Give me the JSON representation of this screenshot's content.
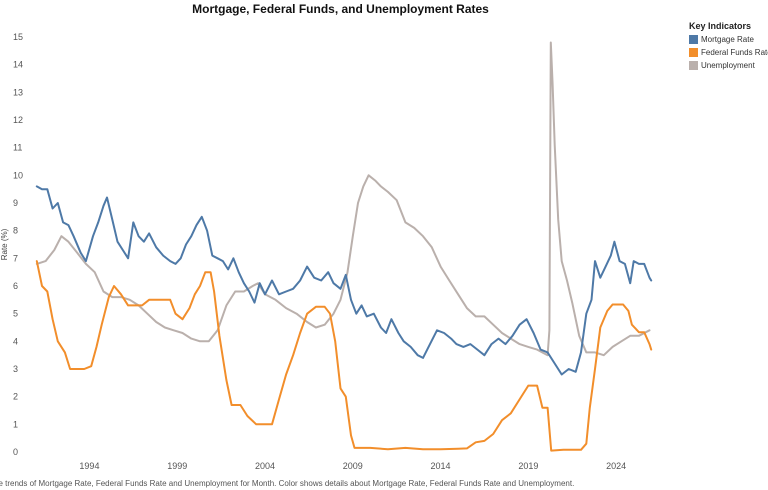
{
  "chart_data": {
    "type": "line",
    "title": "Mortgage, Federal Funds, and Unemployment Rates",
    "xlabel": "",
    "ylabel": "Rate (%)",
    "ylim": [
      0,
      15
    ],
    "xlim": [
      1990.5,
      2026.5
    ],
    "y_ticks": [
      "0",
      "1",
      "2",
      "3",
      "4",
      "5",
      "6",
      "7",
      "8",
      "9",
      "10",
      "11",
      "12",
      "13",
      "14",
      "15"
    ],
    "x_ticks": [
      {
        "value": 1994,
        "label": "1994"
      },
      {
        "value": 1999,
        "label": "1999"
      },
      {
        "value": 2004,
        "label": "2004"
      },
      {
        "value": 2009,
        "label": "2009"
      },
      {
        "value": 2014,
        "label": "2014"
      },
      {
        "value": 2019,
        "label": "2019"
      },
      {
        "value": 2024,
        "label": "2024"
      }
    ],
    "grid": false,
    "legend": {
      "title": "Key Indicators",
      "position": "right",
      "items": [
        {
          "label": "Mortgage Rate",
          "color": "#4e79a7"
        },
        {
          "label": "Federal Funds Rate",
          "color": "#f28e2b"
        },
        {
          "label": "Unemployment",
          "color": "#bab0ac"
        }
      ]
    },
    "series": [
      {
        "name": "Unemployment",
        "color": "#bab0ac",
        "points": [
          [
            1991.0,
            6.8
          ],
          [
            1991.5,
            6.9
          ],
          [
            1992.0,
            7.3
          ],
          [
            1992.4,
            7.8
          ],
          [
            1992.8,
            7.6
          ],
          [
            1993.3,
            7.2
          ],
          [
            1993.8,
            6.8
          ],
          [
            1994.3,
            6.5
          ],
          [
            1994.8,
            5.8
          ],
          [
            1995.3,
            5.6
          ],
          [
            1995.8,
            5.6
          ],
          [
            1996.3,
            5.5
          ],
          [
            1996.8,
            5.3
          ],
          [
            1997.3,
            5.0
          ],
          [
            1997.8,
            4.7
          ],
          [
            1998.3,
            4.5
          ],
          [
            1998.8,
            4.4
          ],
          [
            1999.3,
            4.3
          ],
          [
            1999.8,
            4.1
          ],
          [
            2000.3,
            4.0
          ],
          [
            2000.8,
            4.0
          ],
          [
            2001.3,
            4.4
          ],
          [
            2001.8,
            5.3
          ],
          [
            2002.3,
            5.8
          ],
          [
            2002.8,
            5.8
          ],
          [
            2003.3,
            6.0
          ],
          [
            2003.6,
            6.1
          ],
          [
            2004.0,
            5.7
          ],
          [
            2004.6,
            5.5
          ],
          [
            2005.2,
            5.2
          ],
          [
            2005.8,
            5.0
          ],
          [
            2006.4,
            4.7
          ],
          [
            2006.9,
            4.5
          ],
          [
            2007.4,
            4.6
          ],
          [
            2007.9,
            5.0
          ],
          [
            2008.3,
            5.5
          ],
          [
            2008.7,
            6.5
          ],
          [
            2009.0,
            7.8
          ],
          [
            2009.3,
            9.0
          ],
          [
            2009.6,
            9.6
          ],
          [
            2009.9,
            10.0
          ],
          [
            2010.3,
            9.8
          ],
          [
            2010.6,
            9.6
          ],
          [
            2011.0,
            9.4
          ],
          [
            2011.5,
            9.1
          ],
          [
            2012.0,
            8.3
          ],
          [
            2012.5,
            8.1
          ],
          [
            2013.0,
            7.8
          ],
          [
            2013.5,
            7.4
          ],
          [
            2014.0,
            6.7
          ],
          [
            2014.5,
            6.2
          ],
          [
            2015.0,
            5.7
          ],
          [
            2015.5,
            5.2
          ],
          [
            2016.0,
            4.9
          ],
          [
            2016.5,
            4.9
          ],
          [
            2017.0,
            4.6
          ],
          [
            2017.5,
            4.3
          ],
          [
            2018.0,
            4.1
          ],
          [
            2018.5,
            3.9
          ],
          [
            2019.0,
            3.8
          ],
          [
            2019.5,
            3.7
          ],
          [
            2020.1,
            3.5
          ],
          [
            2020.2,
            4.4
          ],
          [
            2020.28,
            14.8
          ],
          [
            2020.38,
            13.3
          ],
          [
            2020.5,
            11.1
          ],
          [
            2020.7,
            8.4
          ],
          [
            2020.9,
            6.9
          ],
          [
            2021.2,
            6.2
          ],
          [
            2021.5,
            5.4
          ],
          [
            2021.9,
            4.2
          ],
          [
            2022.3,
            3.6
          ],
          [
            2022.8,
            3.6
          ],
          [
            2023.3,
            3.5
          ],
          [
            2023.8,
            3.8
          ],
          [
            2024.3,
            4.0
          ],
          [
            2024.8,
            4.2
          ],
          [
            2025.3,
            4.2
          ],
          [
            2025.9,
            4.4
          ]
        ]
      },
      {
        "name": "Federal Funds Rate",
        "color": "#f28e2b",
        "points": [
          [
            1991.0,
            6.9
          ],
          [
            1991.3,
            6.0
          ],
          [
            1991.6,
            5.8
          ],
          [
            1991.9,
            4.8
          ],
          [
            1992.2,
            4.0
          ],
          [
            1992.6,
            3.6
          ],
          [
            1992.9,
            3.0
          ],
          [
            1993.3,
            3.0
          ],
          [
            1993.7,
            3.0
          ],
          [
            1994.1,
            3.1
          ],
          [
            1994.4,
            3.8
          ],
          [
            1994.7,
            4.6
          ],
          [
            1995.1,
            5.6
          ],
          [
            1995.4,
            6.0
          ],
          [
            1995.8,
            5.7
          ],
          [
            1996.2,
            5.3
          ],
          [
            1996.6,
            5.3
          ],
          [
            1997.0,
            5.3
          ],
          [
            1997.4,
            5.5
          ],
          [
            1997.8,
            5.5
          ],
          [
            1998.2,
            5.5
          ],
          [
            1998.6,
            5.5
          ],
          [
            1998.9,
            5.0
          ],
          [
            1999.3,
            4.8
          ],
          [
            1999.7,
            5.2
          ],
          [
            2000.0,
            5.7
          ],
          [
            2000.3,
            6.0
          ],
          [
            2000.6,
            6.5
          ],
          [
            2000.9,
            6.5
          ],
          [
            2001.1,
            5.8
          ],
          [
            2001.4,
            4.2
          ],
          [
            2001.8,
            2.6
          ],
          [
            2002.1,
            1.7
          ],
          [
            2002.6,
            1.7
          ],
          [
            2003.0,
            1.3
          ],
          [
            2003.5,
            1.0
          ],
          [
            2004.0,
            1.0
          ],
          [
            2004.4,
            1.0
          ],
          [
            2004.8,
            1.9
          ],
          [
            2005.2,
            2.8
          ],
          [
            2005.6,
            3.5
          ],
          [
            2006.0,
            4.3
          ],
          [
            2006.4,
            5.0
          ],
          [
            2006.9,
            5.25
          ],
          [
            2007.4,
            5.25
          ],
          [
            2007.7,
            5.0
          ],
          [
            2008.0,
            4.0
          ],
          [
            2008.3,
            2.3
          ],
          [
            2008.6,
            2.0
          ],
          [
            2008.9,
            0.6
          ],
          [
            2009.1,
            0.15
          ],
          [
            2010.0,
            0.15
          ],
          [
            2011.0,
            0.1
          ],
          [
            2012.0,
            0.15
          ],
          [
            2013.0,
            0.1
          ],
          [
            2014.0,
            0.1
          ],
          [
            2015.0,
            0.12
          ],
          [
            2015.5,
            0.13
          ],
          [
            2016.0,
            0.35
          ],
          [
            2016.5,
            0.4
          ],
          [
            2017.0,
            0.65
          ],
          [
            2017.5,
            1.15
          ],
          [
            2018.0,
            1.4
          ],
          [
            2018.5,
            1.9
          ],
          [
            2019.0,
            2.4
          ],
          [
            2019.5,
            2.4
          ],
          [
            2019.8,
            1.6
          ],
          [
            2020.1,
            1.6
          ],
          [
            2020.3,
            0.05
          ],
          [
            2021.0,
            0.08
          ],
          [
            2022.0,
            0.08
          ],
          [
            2022.3,
            0.3
          ],
          [
            2022.5,
            1.6
          ],
          [
            2022.8,
            3.0
          ],
          [
            2023.1,
            4.5
          ],
          [
            2023.5,
            5.1
          ],
          [
            2023.8,
            5.33
          ],
          [
            2024.4,
            5.33
          ],
          [
            2024.7,
            5.1
          ],
          [
            2024.9,
            4.6
          ],
          [
            2025.3,
            4.33
          ],
          [
            2025.6,
            4.33
          ],
          [
            2025.9,
            3.9
          ],
          [
            2026.0,
            3.7
          ]
        ]
      },
      {
        "name": "Mortgage Rate",
        "color": "#4e79a7",
        "points": [
          [
            1991.0,
            9.6
          ],
          [
            1991.3,
            9.5
          ],
          [
            1991.6,
            9.5
          ],
          [
            1991.9,
            8.8
          ],
          [
            1992.2,
            9.0
          ],
          [
            1992.5,
            8.3
          ],
          [
            1992.8,
            8.2
          ],
          [
            1993.1,
            7.8
          ],
          [
            1993.5,
            7.2
          ],
          [
            1993.8,
            6.9
          ],
          [
            1994.2,
            7.8
          ],
          [
            1994.5,
            8.3
          ],
          [
            1994.8,
            8.9
          ],
          [
            1995.0,
            9.2
          ],
          [
            1995.3,
            8.4
          ],
          [
            1995.6,
            7.6
          ],
          [
            1995.9,
            7.3
          ],
          [
            1996.2,
            7.0
          ],
          [
            1996.5,
            8.3
          ],
          [
            1996.8,
            7.8
          ],
          [
            1997.1,
            7.6
          ],
          [
            1997.4,
            7.9
          ],
          [
            1997.8,
            7.4
          ],
          [
            1998.2,
            7.1
          ],
          [
            1998.6,
            6.9
          ],
          [
            1998.9,
            6.8
          ],
          [
            1999.2,
            7.0
          ],
          [
            1999.5,
            7.5
          ],
          [
            1999.8,
            7.8
          ],
          [
            2000.1,
            8.2
          ],
          [
            2000.4,
            8.5
          ],
          [
            2000.7,
            8.0
          ],
          [
            2001.0,
            7.1
          ],
          [
            2001.3,
            7.0
          ],
          [
            2001.6,
            6.9
          ],
          [
            2001.9,
            6.6
          ],
          [
            2002.2,
            7.0
          ],
          [
            2002.5,
            6.5
          ],
          [
            2002.8,
            6.1
          ],
          [
            2003.1,
            5.8
          ],
          [
            2003.4,
            5.4
          ],
          [
            2003.7,
            6.1
          ],
          [
            2004.0,
            5.7
          ],
          [
            2004.4,
            6.2
          ],
          [
            2004.8,
            5.7
          ],
          [
            2005.2,
            5.8
          ],
          [
            2005.6,
            5.9
          ],
          [
            2006.0,
            6.2
          ],
          [
            2006.4,
            6.7
          ],
          [
            2006.8,
            6.3
          ],
          [
            2007.2,
            6.2
          ],
          [
            2007.6,
            6.5
          ],
          [
            2007.9,
            6.1
          ],
          [
            2008.3,
            5.9
          ],
          [
            2008.6,
            6.4
          ],
          [
            2008.9,
            5.5
          ],
          [
            2009.2,
            5.0
          ],
          [
            2009.5,
            5.3
          ],
          [
            2009.8,
            4.9
          ],
          [
            2010.2,
            5.0
          ],
          [
            2010.6,
            4.5
          ],
          [
            2010.9,
            4.3
          ],
          [
            2011.2,
            4.8
          ],
          [
            2011.6,
            4.3
          ],
          [
            2011.9,
            4.0
          ],
          [
            2012.3,
            3.8
          ],
          [
            2012.7,
            3.5
          ],
          [
            2013.0,
            3.4
          ],
          [
            2013.4,
            3.9
          ],
          [
            2013.8,
            4.4
          ],
          [
            2014.2,
            4.3
          ],
          [
            2014.6,
            4.1
          ],
          [
            2014.9,
            3.9
          ],
          [
            2015.3,
            3.8
          ],
          [
            2015.7,
            3.9
          ],
          [
            2016.1,
            3.7
          ],
          [
            2016.5,
            3.5
          ],
          [
            2016.9,
            3.9
          ],
          [
            2017.3,
            4.1
          ],
          [
            2017.7,
            3.9
          ],
          [
            2018.1,
            4.2
          ],
          [
            2018.5,
            4.6
          ],
          [
            2018.9,
            4.8
          ],
          [
            2019.3,
            4.3
          ],
          [
            2019.7,
            3.7
          ],
          [
            2020.1,
            3.6
          ],
          [
            2020.5,
            3.2
          ],
          [
            2020.9,
            2.8
          ],
          [
            2021.3,
            3.0
          ],
          [
            2021.7,
            2.9
          ],
          [
            2022.0,
            3.6
          ],
          [
            2022.3,
            5.0
          ],
          [
            2022.6,
            5.5
          ],
          [
            2022.8,
            6.9
          ],
          [
            2023.1,
            6.3
          ],
          [
            2023.4,
            6.7
          ],
          [
            2023.7,
            7.1
          ],
          [
            2023.9,
            7.6
          ],
          [
            2024.2,
            6.9
          ],
          [
            2024.5,
            6.8
          ],
          [
            2024.8,
            6.1
          ],
          [
            2025.0,
            6.9
          ],
          [
            2025.3,
            6.8
          ],
          [
            2025.6,
            6.8
          ],
          [
            2025.9,
            6.3
          ],
          [
            2026.0,
            6.2
          ]
        ]
      }
    ],
    "caption": "he trends of Mortgage Rate, Federal Funds Rate and Unemployment for Month.  Color shows details about Mortgage Rate, Federal Funds Rate and Unemployment."
  }
}
